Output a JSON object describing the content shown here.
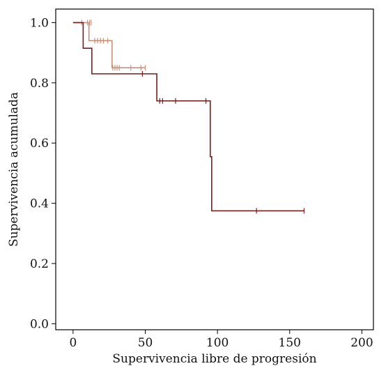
{
  "chart_data": {
    "type": "line",
    "subtype": "kaplan-meier step curves",
    "title": "",
    "xlabel": "Supervivencia libre de progresión",
    "ylabel": "Supervivencia acumulada",
    "xlim": [
      -12,
      208
    ],
    "ylim": [
      -0.02,
      1.045
    ],
    "xticks": [
      0,
      50,
      100,
      150,
      200
    ],
    "yticks": [
      0.0,
      0.2,
      0.4,
      0.6,
      0.8,
      1.0
    ],
    "xtick_labels": [
      "0",
      "50",
      "100",
      "150",
      "200"
    ],
    "ytick_labels": [
      "0.0",
      "0.2",
      "0.4",
      "0.6",
      "0.8",
      "1.0"
    ],
    "grid": false,
    "legend": "none",
    "series": [
      {
        "color": "#c8917a",
        "steps": [
          [
            0,
            1.0
          ],
          [
            11,
            1.0
          ],
          [
            11,
            0.94
          ],
          [
            27,
            0.94
          ],
          [
            27,
            0.85
          ],
          [
            50,
            0.85
          ]
        ],
        "start_x": 0,
        "censored": [
          [
            6,
            1.0
          ],
          [
            10,
            1.0
          ],
          [
            11.5,
            1.0
          ],
          [
            12.5,
            1.0
          ],
          [
            15,
            0.94
          ],
          [
            17,
            0.94
          ],
          [
            19,
            0.94
          ],
          [
            21,
            0.94
          ],
          [
            24,
            0.94
          ],
          [
            27.5,
            0.85
          ],
          [
            29,
            0.85
          ],
          [
            30.5,
            0.85
          ],
          [
            32,
            0.85
          ],
          [
            40,
            0.85
          ],
          [
            47,
            0.85
          ],
          [
            50,
            0.85
          ]
        ]
      },
      {
        "color": "#7a1c1c",
        "steps": [
          [
            0,
            1.0
          ],
          [
            7,
            1.0
          ],
          [
            7,
            0.915
          ],
          [
            13,
            0.915
          ],
          [
            13,
            0.83
          ],
          [
            58,
            0.83
          ],
          [
            58,
            0.74
          ],
          [
            95,
            0.74
          ],
          [
            95,
            0.555
          ],
          [
            96,
            0.555
          ],
          [
            96,
            0.375
          ],
          [
            160,
            0.375
          ]
        ],
        "start_x": 7,
        "censored": [
          [
            48,
            0.83
          ],
          [
            60,
            0.74
          ],
          [
            62,
            0.74
          ],
          [
            71,
            0.74
          ],
          [
            92,
            0.74
          ],
          [
            127,
            0.375
          ],
          [
            160,
            0.375
          ]
        ]
      }
    ]
  }
}
